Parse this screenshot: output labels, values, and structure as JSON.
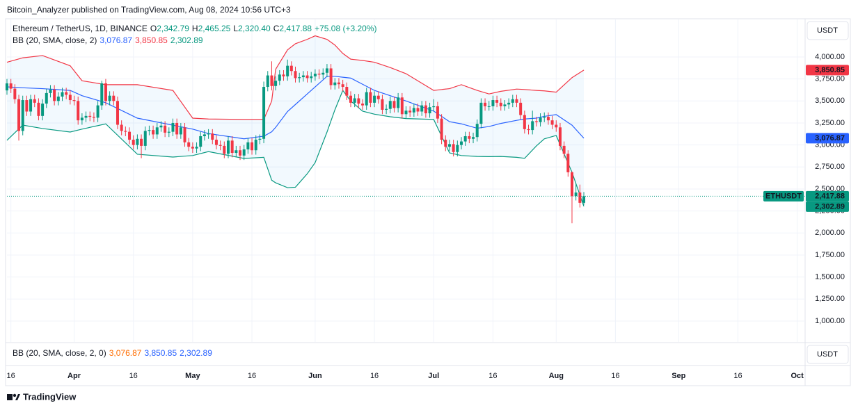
{
  "chart_data": {
    "type": "candlestick",
    "publisher": "Bitcoin_Analyzer published on TradingView.com, Aug 08, 2024 10:56 UTC+3",
    "symbol": "Ethereum / TetherUS, 1D, BINANCE",
    "ohlc_legend": [
      {
        "key": "O",
        "label": "2,342.79"
      },
      {
        "key": "H",
        "label": "2,465.25"
      },
      {
        "key": "L",
        "label": "2,320.40"
      },
      {
        "key": "C",
        "label": "2,417.88"
      }
    ],
    "change": "+75.08 (+3.20%)",
    "legend_color": "#089981",
    "indicator": {
      "title": "BB (20, SMA, close, 2)",
      "labels": [
        {
          "label": "3,076.87",
          "color": "#2962ff"
        },
        {
          "label": "3,850.85",
          "color": "#f23645"
        },
        {
          "label": "2,302.89",
          "color": "#089981"
        }
      ]
    },
    "lower_pane": {
      "title": "BB (20, SMA, close, 2, 0)",
      "labels": [
        {
          "label": "3,076.87",
          "color": "#ff6d00"
        },
        {
          "label": "3,850.85",
          "color": "#2962ff"
        },
        {
          "label": "2,302.89",
          "color": "#2962ff"
        }
      ],
      "currency": "USDT"
    },
    "currency": "USDT",
    "symbol_badge": "ETHUSDT",
    "price_badges": [
      {
        "value": 3850.85,
        "label": "3,850.85",
        "color": "#f23645"
      },
      {
        "value": 3076.87,
        "label": "3,076.87",
        "color": "#2962ff"
      },
      {
        "value": 2417.88,
        "label": "2,417.88",
        "color": "#089981"
      },
      {
        "value": 2302.89,
        "label": "2,302.89",
        "color": "#089981"
      }
    ],
    "logo": "TradingView",
    "up_color": "#089981",
    "down_color": "#f23645",
    "grid": true,
    "xlim": [
      -1,
      201
    ],
    "ylim": [
      763,
      4426
    ],
    "yticks": [
      {
        "value": 1000,
        "label": "1,000.00"
      },
      {
        "value": 1250,
        "label": "1,250.00"
      },
      {
        "value": 1500,
        "label": "1,500.00"
      },
      {
        "value": 1750,
        "label": "1,750.00"
      },
      {
        "value": 2000,
        "label": "2,000.00"
      },
      {
        "value": 2250,
        "label": "2,250.00"
      },
      {
        "value": 2500,
        "label": "2,500.00"
      },
      {
        "value": 2750,
        "label": "2,750.00"
      },
      {
        "value": 3000,
        "label": "3,000.00"
      },
      {
        "value": 3250,
        "label": "3,250.00"
      },
      {
        "value": 3500,
        "label": "3,500.00"
      },
      {
        "value": 3750,
        "label": "3,750.00"
      },
      {
        "value": 4000,
        "label": "4,000.00"
      }
    ],
    "xticks": [
      {
        "value": 0,
        "label": "16"
      },
      {
        "value": 16,
        "label": "Apr"
      },
      {
        "value": 31,
        "label": "16"
      },
      {
        "value": 46,
        "label": "May"
      },
      {
        "value": 61,
        "label": "16"
      },
      {
        "value": 77,
        "label": "Jun"
      },
      {
        "value": 92,
        "label": "16"
      },
      {
        "value": 107,
        "label": "Jul"
      },
      {
        "value": 122,
        "label": "16"
      },
      {
        "value": 138,
        "label": "Aug"
      },
      {
        "value": 153,
        "label": "16"
      },
      {
        "value": 169,
        "label": "Sep"
      },
      {
        "value": 184,
        "label": "16"
      },
      {
        "value": 199,
        "label": "Oct"
      }
    ],
    "x": [
      -1,
      0,
      1,
      2,
      3,
      4,
      5,
      6,
      7,
      8,
      9,
      10,
      11,
      12,
      13,
      14,
      15,
      16,
      17,
      18,
      19,
      20,
      21,
      22,
      23,
      24,
      25,
      26,
      27,
      28,
      29,
      30,
      31,
      32,
      33,
      34,
      35,
      36,
      37,
      38,
      39,
      40,
      41,
      42,
      43,
      44,
      45,
      46,
      47,
      48,
      49,
      50,
      51,
      52,
      53,
      54,
      55,
      56,
      57,
      58,
      59,
      60,
      61,
      62,
      63,
      64,
      65,
      66,
      67,
      68,
      69,
      70,
      71,
      72,
      73,
      74,
      75,
      76,
      77,
      78,
      79,
      80,
      81,
      82,
      83,
      84,
      85,
      86,
      87,
      88,
      89,
      90,
      91,
      92,
      93,
      94,
      95,
      96,
      97,
      98,
      99,
      100,
      101,
      102,
      103,
      104,
      105,
      106,
      107,
      108,
      109,
      110,
      111,
      112,
      113,
      114,
      115,
      116,
      117,
      118,
      119,
      120,
      121,
      122,
      123,
      124,
      125,
      126,
      127,
      128,
      129,
      130,
      131,
      132,
      133,
      134,
      135,
      136,
      137,
      138,
      139,
      140,
      141,
      142,
      143,
      144,
      145
    ],
    "open": [
      3620,
      3700,
      3640,
      3520,
      3160,
      3510,
      3380,
      3520,
      3480,
      3330,
      3470,
      3590,
      3630,
      3500,
      3550,
      3600,
      3570,
      3510,
      3500,
      3280,
      3310,
      3330,
      3320,
      3310,
      3450,
      3700,
      3500,
      3560,
      3500,
      3230,
      3160,
      3150,
      3060,
      3000,
      3070,
      2990,
      3160,
      3170,
      3120,
      3200,
      3220,
      3140,
      3150,
      3250,
      3120,
      3200,
      3030,
      2980,
      2960,
      2980,
      3100,
      3120,
      3130,
      3060,
      3000,
      2990,
      2900,
      3050,
      2910,
      2940,
      2880,
      2950,
      3030,
      2940,
      3060,
      3070,
      3660,
      3790,
      3670,
      3730,
      3800,
      3780,
      3900,
      3840,
      3760,
      3770,
      3790,
      3760,
      3780,
      3810,
      3800,
      3820,
      3870,
      3680,
      3710,
      3690,
      3660,
      3560,
      3480,
      3530,
      3470,
      3450,
      3600,
      3480,
      3560,
      3520,
      3400,
      3410,
      3500,
      3420,
      3540,
      3350,
      3390,
      3370,
      3420,
      3380,
      3450,
      3360,
      3430,
      3440,
      3300,
      3060,
      2980,
      3010,
      2920,
      3000,
      3040,
      3100,
      3070,
      3090,
      3240,
      3480,
      3440,
      3440,
      3510,
      3480,
      3440,
      3460,
      3480,
      3520,
      3480,
      3340,
      3180,
      3170,
      3270,
      3260,
      3310,
      3320,
      3280,
      3230,
      3200,
      2990,
      2900,
      2690,
      2420,
      2460,
      2342.79
    ],
    "high": [
      3750,
      3750,
      3690,
      3570,
      3560,
      3560,
      3570,
      3570,
      3530,
      3520,
      3640,
      3680,
      3680,
      3600,
      3650,
      3650,
      3620,
      3560,
      3550,
      3360,
      3380,
      3380,
      3370,
      3500,
      3730,
      3750,
      3610,
      3610,
      3550,
      3280,
      3210,
      3200,
      3110,
      3120,
      3120,
      3210,
      3220,
      3220,
      3250,
      3270,
      3270,
      3200,
      3300,
      3300,
      3250,
      3250,
      3080,
      3030,
      3030,
      3150,
      3170,
      3180,
      3180,
      3110,
      3050,
      3040,
      3100,
      3100,
      2990,
      2990,
      3000,
      3080,
      3080,
      3110,
      3120,
      3720,
      3840,
      3950,
      3780,
      3850,
      3850,
      3970,
      3950,
      3890,
      3820,
      3840,
      3840,
      3830,
      3860,
      3860,
      3870,
      3920,
      3920,
      3760,
      3760,
      3740,
      3710,
      3610,
      3580,
      3580,
      3520,
      3650,
      3650,
      3610,
      3610,
      3570,
      3460,
      3550,
      3550,
      3590,
      3590,
      3440,
      3440,
      3470,
      3470,
      3500,
      3500,
      3480,
      3520,
      3490,
      3350,
      3110,
      3060,
      3060,
      3050,
      3090,
      3150,
      3150,
      3140,
      3290,
      3530,
      3530,
      3500,
      3560,
      3560,
      3530,
      3510,
      3530,
      3570,
      3570,
      3530,
      3390,
      3230,
      3390,
      3320,
      3360,
      3370,
      3370,
      3330,
      3280,
      3250,
      3040,
      2940,
      2700,
      2560,
      2550,
      2465.25
    ],
    "low": [
      3570,
      3590,
      3470,
      3050,
      3110,
      3330,
      3330,
      3430,
      3280,
      3280,
      3420,
      3540,
      3450,
      3450,
      3500,
      3520,
      3460,
      3450,
      3230,
      3230,
      3260,
      3270,
      3260,
      3260,
      3400,
      3450,
      3450,
      3450,
      3180,
      3110,
      3100,
      3010,
      2950,
      2950,
      2850,
      2940,
      3110,
      3070,
      3070,
      3150,
      3090,
      3090,
      3100,
      3070,
      3070,
      2980,
      2930,
      2910,
      2910,
      2930,
      3050,
      3070,
      3010,
      2950,
      2940,
      2850,
      2850,
      2860,
      2860,
      2830,
      2830,
      2900,
      2890,
      2890,
      3010,
      3020,
      3610,
      3620,
      3620,
      3680,
      3730,
      3730,
      3790,
      3710,
      3710,
      3720,
      3710,
      3710,
      3730,
      3750,
      3750,
      3770,
      3630,
      3630,
      3640,
      3610,
      3510,
      3430,
      3430,
      3420,
      3400,
      3400,
      3430,
      3430,
      3470,
      3350,
      3350,
      3360,
      3370,
      3370,
      3300,
      3300,
      3320,
      3320,
      3330,
      3330,
      3310,
      3310,
      3380,
      3250,
      3010,
      2930,
      2930,
      2870,
      2870,
      2950,
      2990,
      3020,
      3020,
      3040,
      3190,
      3390,
      3390,
      3390,
      3430,
      3390,
      3390,
      3410,
      3430,
      3430,
      3290,
      3130,
      3120,
      3120,
      3210,
      3210,
      3260,
      3230,
      3180,
      3150,
      2940,
      2850,
      2640,
      2111,
      2370,
      2290,
      2320.4
    ],
    "close": [
      3700,
      3640,
      3520,
      3160,
      3510,
      3380,
      3520,
      3480,
      3330,
      3470,
      3590,
      3630,
      3500,
      3550,
      3600,
      3570,
      3510,
      3500,
      3280,
      3310,
      3330,
      3320,
      3310,
      3450,
      3700,
      3500,
      3560,
      3500,
      3230,
      3160,
      3150,
      3060,
      3000,
      3070,
      2990,
      3160,
      3170,
      3120,
      3200,
      3220,
      3140,
      3150,
      3250,
      3120,
      3200,
      3030,
      2980,
      2960,
      2980,
      3100,
      3120,
      3130,
      3060,
      3000,
      2990,
      2900,
      3050,
      2910,
      2940,
      2880,
      2950,
      3030,
      2940,
      3060,
      3070,
      3660,
      3790,
      3670,
      3730,
      3800,
      3780,
      3900,
      3840,
      3760,
      3770,
      3790,
      3760,
      3780,
      3810,
      3800,
      3820,
      3870,
      3680,
      3710,
      3690,
      3660,
      3560,
      3480,
      3530,
      3470,
      3450,
      3600,
      3480,
      3560,
      3520,
      3400,
      3410,
      3500,
      3420,
      3540,
      3350,
      3390,
      3370,
      3420,
      3380,
      3450,
      3360,
      3430,
      3440,
      3300,
      3060,
      2980,
      3010,
      2920,
      3000,
      3040,
      3100,
      3070,
      3090,
      3240,
      3480,
      3440,
      3440,
      3510,
      3480,
      3440,
      3460,
      3480,
      3520,
      3480,
      3340,
      3180,
      3170,
      3270,
      3260,
      3310,
      3320,
      3280,
      3230,
      3200,
      2990,
      2900,
      2690,
      2420,
      2460,
      2342.79,
      2417.88
    ],
    "bollinger": {
      "x": [
        -1,
        3,
        8,
        15,
        18,
        24,
        32,
        41,
        46,
        50,
        59,
        64,
        66,
        67,
        70,
        72,
        75,
        77,
        80,
        82,
        84,
        86,
        89,
        92,
        96,
        100,
        107,
        111,
        114,
        118,
        121,
        124,
        128,
        130,
        133,
        135,
        138,
        142,
        145
      ],
      "fill": "rgba(33,150,243,0.06)",
      "upper": {
        "color": "#f23645",
        "values": [
          3940,
          3990,
          4016,
          3900,
          3730,
          3685,
          3685,
          3620,
          3305,
          3295,
          3290,
          3290,
          3500,
          3860,
          4080,
          4150,
          4200,
          4240,
          4200,
          4135,
          4040,
          3975,
          3960,
          3940,
          3880,
          3810,
          3620,
          3640,
          3685,
          3620,
          3580,
          3610,
          3635,
          3630,
          3620,
          3615,
          3600,
          3765,
          3850.85
        ]
      },
      "basis": {
        "color": "#2962ff",
        "values": [
          3660,
          3650,
          3640,
          3620,
          3560,
          3480,
          3305,
          3225,
          3180,
          3130,
          3070,
          3100,
          3150,
          3200,
          3380,
          3460,
          3580,
          3660,
          3780,
          3780,
          3770,
          3760,
          3690,
          3620,
          3560,
          3500,
          3385,
          3265,
          3240,
          3190,
          3210,
          3245,
          3280,
          3295,
          3305,
          3325,
          3345,
          3225,
          3076.87
        ]
      },
      "lower": {
        "color": "#089981",
        "values": [
          3053,
          3226,
          3187,
          3147,
          3180,
          3240,
          2895,
          2863,
          2880,
          2925,
          2847,
          2860,
          2600,
          2570,
          2515,
          2520,
          2673,
          2800,
          3147,
          3400,
          3620,
          3500,
          3384,
          3350,
          3321,
          3300,
          3290,
          2910,
          2880,
          2870,
          2868,
          2870,
          2860,
          2848,
          2990,
          3070,
          3108,
          2690,
          2302.89
        ]
      }
    }
  }
}
